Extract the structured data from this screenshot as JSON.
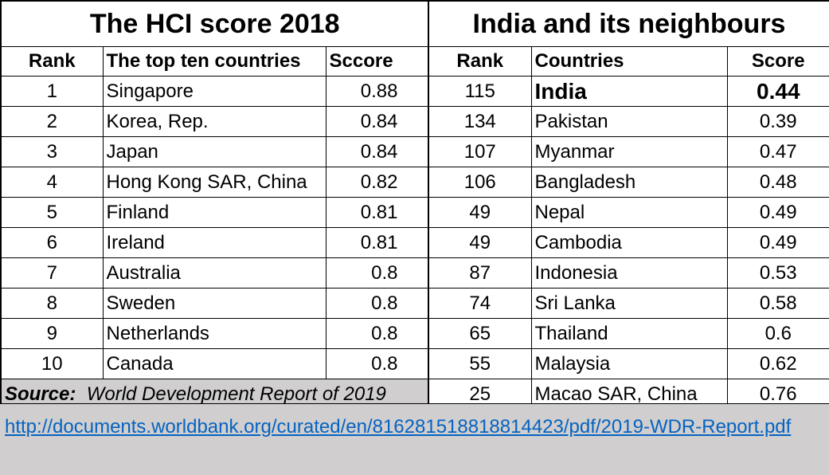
{
  "left": {
    "title": "The HCI score 2018",
    "headers": {
      "rank": "Rank",
      "country": "The top ten countries",
      "score": "Sccore"
    },
    "rows": [
      {
        "rank": "1",
        "country": "Singapore",
        "score": "0.88"
      },
      {
        "rank": "2",
        "country": "Korea, Rep.",
        "score": "0.84"
      },
      {
        "rank": "3",
        "country": "Japan",
        "score": "0.84"
      },
      {
        "rank": "4",
        "country": "Hong Kong SAR, China",
        "score": "0.82"
      },
      {
        "rank": "5",
        "country": "Finland",
        "score": "0.81"
      },
      {
        "rank": "6",
        "country": "Ireland",
        "score": "0.81"
      },
      {
        "rank": "7",
        "country": "Australia",
        "score": "0.8"
      },
      {
        "rank": "8",
        "country": "Sweden",
        "score": "0.8"
      },
      {
        "rank": "9",
        "country": "Netherlands",
        "score": "0.8"
      },
      {
        "rank": "10",
        "country": "Canada",
        "score": "0.8"
      }
    ],
    "source_label": "Source:",
    "source_text": "World Development Report of 2019"
  },
  "right": {
    "title": "India and its neighbours",
    "headers": {
      "rank": "Rank",
      "country": "Countries",
      "score": "Score"
    },
    "rows": [
      {
        "rank": "115",
        "country": "India",
        "score": "0.44"
      },
      {
        "rank": "134",
        "country": "Pakistan",
        "score": "0.39"
      },
      {
        "rank": "107",
        "country": "Myanmar",
        "score": "0.47"
      },
      {
        "rank": "106",
        "country": "Bangladesh",
        "score": "0.48"
      },
      {
        "rank": "49",
        "country": "Nepal",
        "score": "0.49"
      },
      {
        "rank": "49",
        "country": "Cambodia",
        "score": "0.49"
      },
      {
        "rank": "87",
        "country": "Indonesia",
        "score": "0.53"
      },
      {
        "rank": "74",
        "country": "Sri Lanka",
        "score": "0.58"
      },
      {
        "rank": "65",
        "country": "Thailand",
        "score": "0.6"
      },
      {
        "rank": "55",
        "country": "Malaysia",
        "score": "0.62"
      },
      {
        "rank": "25",
        "country": "Macao SAR, China",
        "score": "0.76"
      }
    ]
  },
  "link": {
    "text": "http://documents.worldbank.org/curated/en/816281518818814423/pdf/2019-WDR-Report.pdf"
  },
  "colors": {
    "source_bg": "#d0cece",
    "link": "#0563c1"
  }
}
